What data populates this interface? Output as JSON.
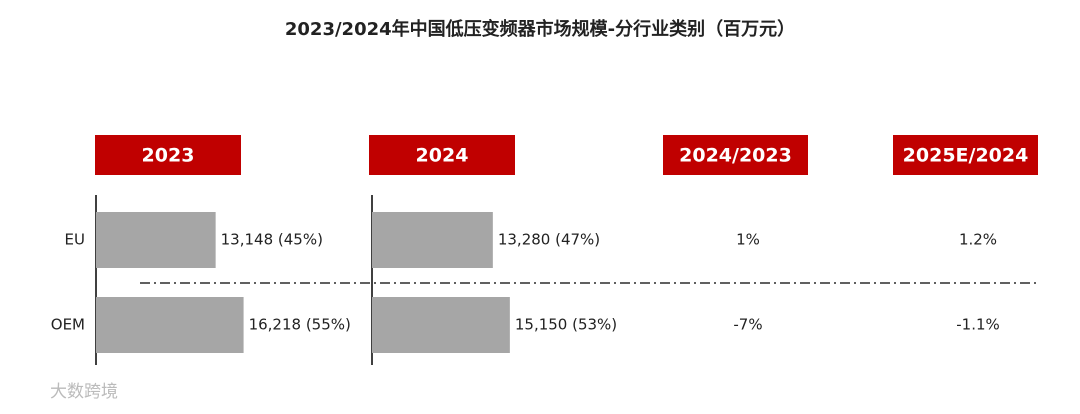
{
  "chart_data": {
    "type": "bar",
    "title": "2023/2024年中国低压变频器市场规模-分行业类别（百万元）",
    "categories": [
      "EU",
      "OEM"
    ],
    "series": [
      {
        "name": "2023",
        "color": "#a6a6a6",
        "values": [
          13148,
          16218
        ],
        "value_labels": [
          "13,148 (45%)",
          "16,218 (55%)"
        ]
      },
      {
        "name": "2024",
        "color": "#a6a6a6",
        "values": [
          13280,
          15150
        ],
        "value_labels": [
          "13,280 (47%)",
          "15,150 (53%)"
        ]
      }
    ],
    "growth": [
      {
        "name": "2024/2023",
        "values": [
          1,
          -7
        ],
        "value_labels": [
          "1%",
          "-7%"
        ]
      },
      {
        "name": "2025E/2024",
        "values": [
          1.2,
          -1.1
        ],
        "value_labels": [
          "1.2%",
          "-1.1%"
        ]
      }
    ],
    "header_color": "#c00000",
    "source": "大数跨境"
  }
}
